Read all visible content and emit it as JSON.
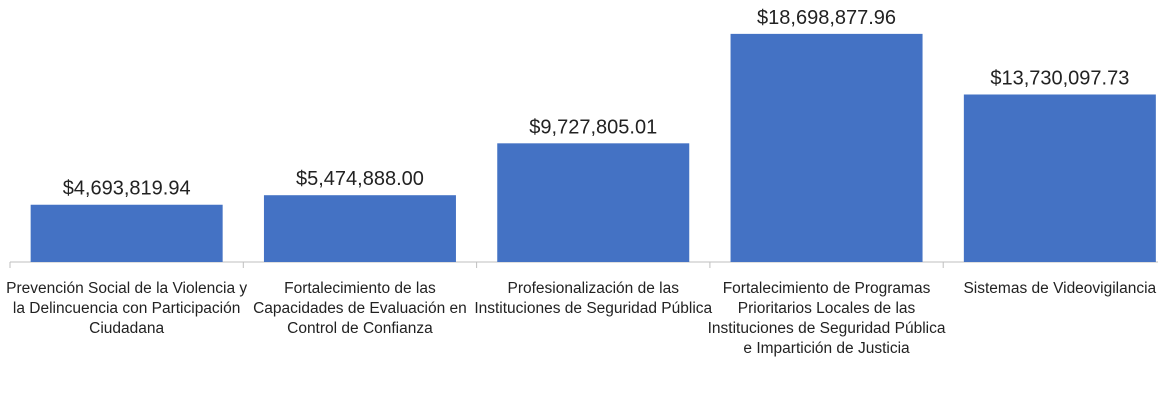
{
  "chart_data": {
    "type": "bar",
    "categories": [
      "Prevención Social de la Violencia y la Delincuencia con Participación Ciudadana",
      "Fortalecimiento de las Capacidades de Evaluación en Control de Confianza",
      "Profesionalización de las Instituciones de Seguridad Pública",
      "Fortalecimiento de Programas Prioritarios Locales de las Instituciones de Seguridad Pública e Impartición de Justicia",
      "Sistemas de Videovigilancia"
    ],
    "values": [
      4693819.94,
      5474888.0,
      9727805.01,
      18698877.96,
      13730097.73
    ],
    "value_labels": [
      "$4,693,819.94",
      "$5,474,888.00",
      "$9,727,805.01",
      "$18,698,877.96",
      "$13,730,097.73"
    ],
    "color": "#4472c4",
    "ylim": [
      0,
      20000000
    ]
  }
}
